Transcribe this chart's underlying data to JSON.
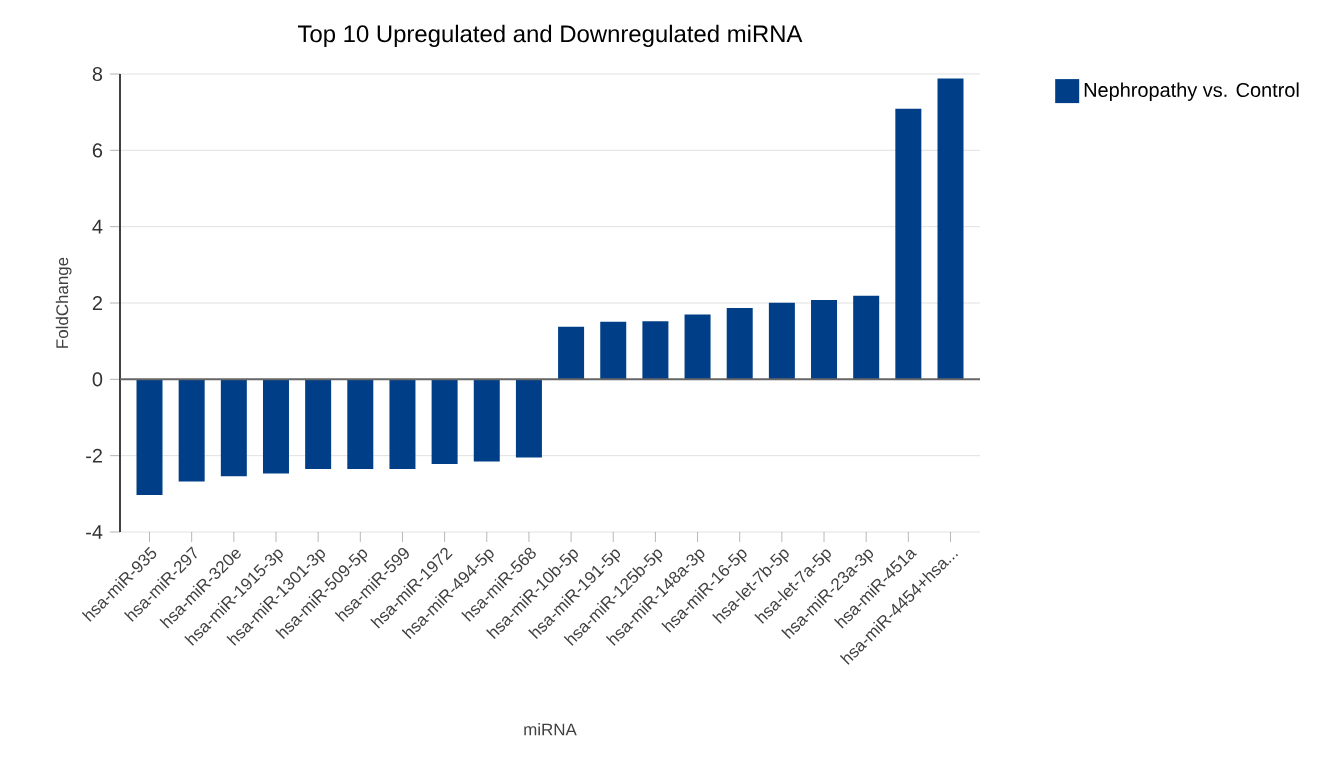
{
  "chart_data": {
    "type": "bar",
    "title": "Top 10 Upregulated and Downregulated miRNA",
    "xlabel": "miRNA",
    "ylabel": "FoldChange",
    "categories": [
      "hsa-miR-935",
      "hsa-miR-297",
      "hsa-miR-320e",
      "hsa-miR-1915-3p",
      "hsa-miR-1301-3p",
      "hsa-miR-509-5p",
      "hsa-miR-599",
      "hsa-miR-1972",
      "hsa-miR-494-5p",
      "hsa-miR-568",
      "hsa-miR-10b-5p",
      "hsa-miR-191-5p",
      "hsa-miR-125b-5p",
      "hsa-miR-148a-3p",
      "hsa-miR-16-5p",
      "hsa-let-7b-5p",
      "hsa-let-7a-5p",
      "hsa-miR-23a-3p",
      "hsa-miR-451a",
      "hsa-miR-4454+hsa..."
    ],
    "series": [
      {
        "name": "Nephropathy vs. Control",
        "color": "#003f87",
        "values": [
          -3.03,
          -2.68,
          -2.54,
          -2.47,
          -2.35,
          -2.35,
          -2.35,
          -2.22,
          -2.15,
          -2.05,
          1.38,
          1.51,
          1.52,
          1.7,
          1.87,
          2.01,
          2.08,
          2.19,
          7.09,
          7.88
        ]
      }
    ],
    "ylim": [
      -4,
      8
    ],
    "yticks": [
      -4,
      -2,
      0,
      2,
      4,
      6,
      8
    ],
    "grid": "y",
    "legend": "top right"
  }
}
